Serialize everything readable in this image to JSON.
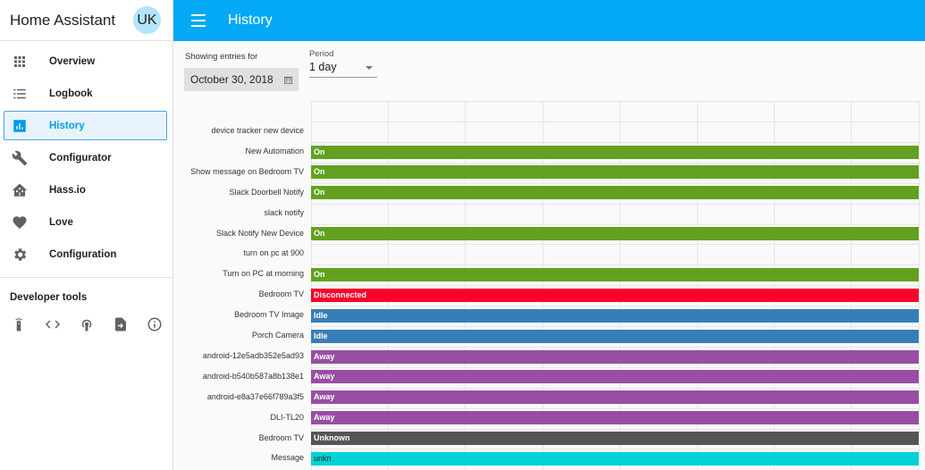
{
  "sidebar": {
    "title": "Home Assistant",
    "avatar_initials": "UK",
    "items": [
      {
        "label": "Overview",
        "icon": "grid-icon"
      },
      {
        "label": "Logbook",
        "icon": "list-icon"
      },
      {
        "label": "History",
        "icon": "chart-bar-icon",
        "active": true
      },
      {
        "label": "Configurator",
        "icon": "wrench-icon"
      },
      {
        "label": "Hass.io",
        "icon": "home-assistant-icon"
      },
      {
        "label": "Love",
        "icon": "heart-icon"
      },
      {
        "label": "Configuration",
        "icon": "gear-icon"
      }
    ],
    "dev_tools_title": "Developer tools",
    "dev_tools": [
      "remote-icon",
      "code-icon",
      "antenna-icon",
      "file-export-icon",
      "info-icon"
    ]
  },
  "header": {
    "title": "History"
  },
  "filters": {
    "date_label": "Showing entries for",
    "date_value": "October 30, 2018",
    "period_label": "Period",
    "period_value": "1 day"
  },
  "colors": {
    "accent": "#03a9f4",
    "on": "#62a11f",
    "disconnected": "#ff0029",
    "idle": "#377eb8",
    "away": "#984ea3",
    "unknown": "#555555",
    "message": "#00d2d5"
  },
  "timeline": {
    "rows": [
      {
        "label": "device tracker new device",
        "state": "",
        "color": ""
      },
      {
        "label": "New Automation",
        "state": "On",
        "color": "#62a11f"
      },
      {
        "label": "Show message on Bedroom TV",
        "state": "On",
        "color": "#62a11f"
      },
      {
        "label": "Slack Doorbell Notify",
        "state": "On",
        "color": "#62a11f"
      },
      {
        "label": "slack notify",
        "state": "",
        "color": ""
      },
      {
        "label": "Slack Notify New Device",
        "state": "On",
        "color": "#62a11f"
      },
      {
        "label": "turn on pc at 900",
        "state": "",
        "color": ""
      },
      {
        "label": "Turn on PC at morning",
        "state": "On",
        "color": "#62a11f"
      },
      {
        "label": "Bedroom TV",
        "state": "Disconnected",
        "color": "#ff0029"
      },
      {
        "label": "Bedroom TV Image",
        "state": "Idle",
        "color": "#377eb8"
      },
      {
        "label": "Porch Camera",
        "state": "Idle",
        "color": "#377eb8"
      },
      {
        "label": "android-12e5adb352e5ad93",
        "state": "Away",
        "color": "#984ea3"
      },
      {
        "label": "android-b540b587a8b138e1",
        "state": "Away",
        "color": "#984ea3"
      },
      {
        "label": "android-e8a37e66f789a3f5",
        "state": "Away",
        "color": "#984ea3"
      },
      {
        "label": "DLI-TL20",
        "state": "Away",
        "color": "#984ea3"
      },
      {
        "label": "Bedroom TV",
        "state": "Unknown",
        "color": "#555555"
      },
      {
        "label": "Message",
        "state": "unkn",
        "color": "#00d2d5",
        "light_text": true
      }
    ]
  }
}
